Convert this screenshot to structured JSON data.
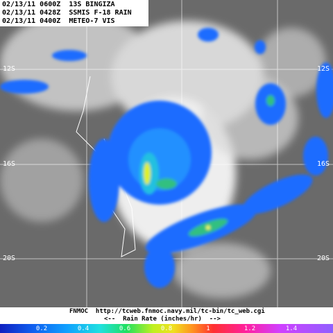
{
  "header": {
    "lines": [
      "02/13/11 0600Z  13S BINGIZA",
      "02/13/11 0428Z  SSMIS F-18 RAIN",
      "02/13/11 0400Z  METEO-7 VIS"
    ]
  },
  "map": {
    "lat_labels": [
      "12S",
      "16S",
      "20S"
    ]
  },
  "footer": {
    "source": "FNMOC  http://tcweb.fnmoc.navy.mil/tc-bin/tc_web.cgi",
    "colorbar_title": "<--  Rain Rate (inches/hr)  -->",
    "colorbar_ticks": [
      0.2,
      0.4,
      0.6,
      0.8,
      1,
      1.2,
      1.4
    ]
  }
}
